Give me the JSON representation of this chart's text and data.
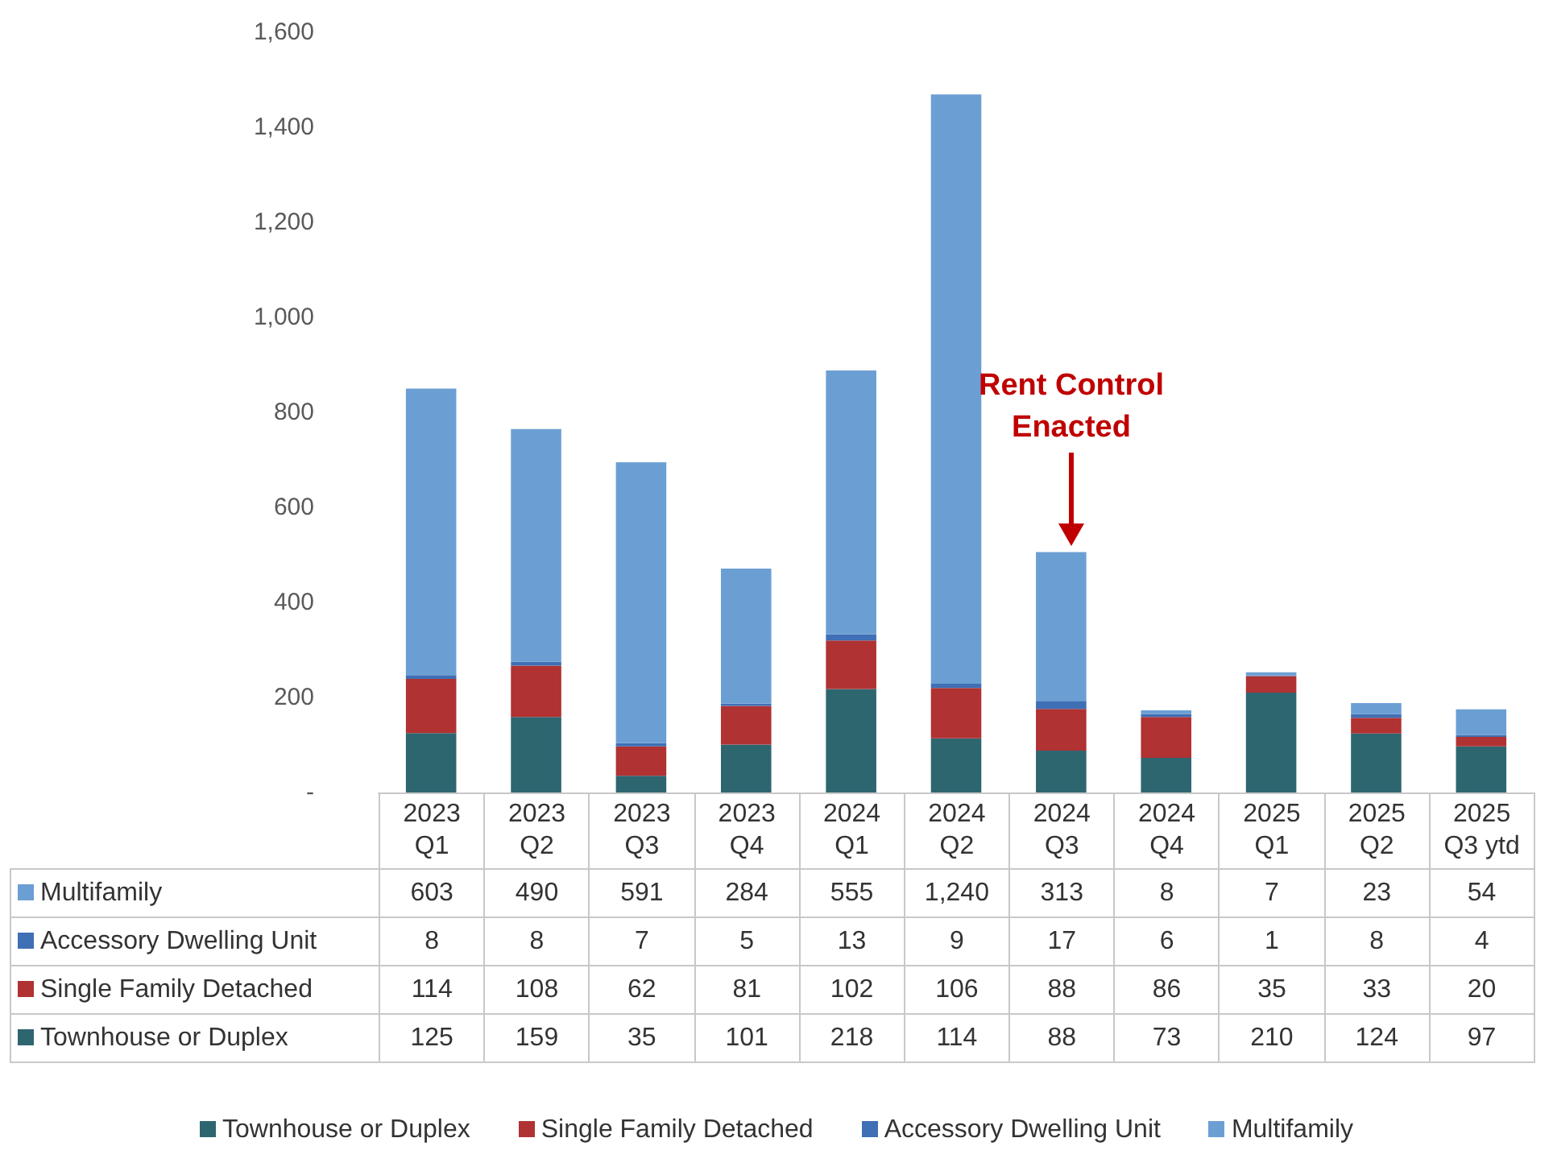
{
  "chart_data": {
    "type": "bar",
    "stacked": true,
    "categories": [
      "2023 Q1",
      "2023 Q2",
      "2023 Q3",
      "2023 Q4",
      "2024 Q1",
      "2024 Q2",
      "2024 Q3",
      "2024 Q4",
      "2025 Q1",
      "2025 Q2",
      "2025 Q3 ytd"
    ],
    "series": [
      {
        "name": "Townhouse or Duplex",
        "color": "#2e6670",
        "values": [
          125,
          159,
          35,
          101,
          218,
          114,
          88,
          73,
          210,
          124,
          97
        ],
        "value_labels": [
          "125",
          "159",
          "35",
          "101",
          "218",
          "114",
          "88",
          "73",
          "210",
          "124",
          "97"
        ]
      },
      {
        "name": "Single Family Detached",
        "color": "#b03232",
        "values": [
          114,
          108,
          62,
          81,
          102,
          106,
          88,
          86,
          35,
          33,
          20
        ],
        "value_labels": [
          "114",
          "108",
          "62",
          "81",
          "102",
          "106",
          "88",
          "86",
          "35",
          "33",
          "20"
        ]
      },
      {
        "name": "Accessory Dwelling Unit",
        "color": "#3f6fb5",
        "values": [
          8,
          8,
          7,
          5,
          13,
          9,
          17,
          6,
          1,
          8,
          4
        ],
        "value_labels": [
          "8",
          "8",
          "7",
          "5",
          "13",
          "9",
          "17",
          "6",
          "1",
          "8",
          "4"
        ]
      },
      {
        "name": "Multifamily",
        "color": "#6b9fd4",
        "values": [
          603,
          490,
          591,
          284,
          555,
          1240,
          313,
          8,
          7,
          23,
          54
        ],
        "value_labels": [
          "603",
          "490",
          "591",
          "284",
          "555",
          "1,240",
          "313",
          "8",
          "7",
          "23",
          "54"
        ]
      }
    ],
    "ylim": [
      0,
      1600
    ],
    "yticks": [
      {
        "value": 0,
        "label": "-"
      },
      200,
      400,
      600,
      800,
      {
        "value": 1000,
        "label": "1,000"
      },
      {
        "value": 1200,
        "label": "1,200"
      },
      {
        "value": 1400,
        "label": "1,400"
      },
      {
        "value": 1600,
        "label": "1,600"
      }
    ],
    "grid": false,
    "legend": "bottom",
    "annotations": [
      "Rent Control Enacted"
    ]
  }
}
